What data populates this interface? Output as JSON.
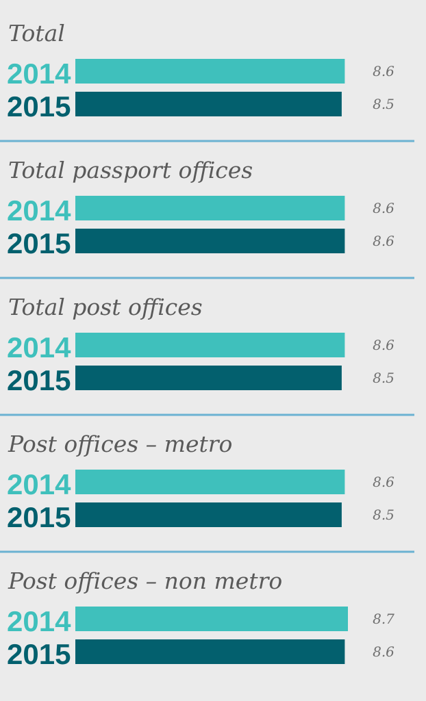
{
  "chart_data": {
    "type": "bar",
    "orientation": "horizontal",
    "title": "",
    "xlabel": "",
    "ylabel": "",
    "xlim": [
      0,
      8.7
    ],
    "grid": false,
    "legend": "none",
    "series_names": [
      "2014",
      "2015"
    ],
    "groups": [
      {
        "label": "Total",
        "values": [
          8.6,
          8.5
        ],
        "value_labels": [
          "8.6",
          "8.5"
        ]
      },
      {
        "label": "Total passport offices",
        "values": [
          8.6,
          8.6
        ],
        "value_labels": [
          "8.6",
          "8.6"
        ]
      },
      {
        "label": "Total post offices",
        "values": [
          8.6,
          8.5
        ],
        "value_labels": [
          "8.6",
          "8.5"
        ]
      },
      {
        "label": "Post offices – metro",
        "values": [
          8.6,
          8.5
        ],
        "value_labels": [
          "8.6",
          "8.5"
        ]
      },
      {
        "label": "Post offices – non metro",
        "values": [
          8.7,
          8.6
        ],
        "value_labels": [
          "8.7",
          "8.6"
        ]
      }
    ]
  },
  "colors": {
    "series_2014": "#3fc0bc",
    "series_2015": "#03606e",
    "divider": "#6bb2d2"
  }
}
